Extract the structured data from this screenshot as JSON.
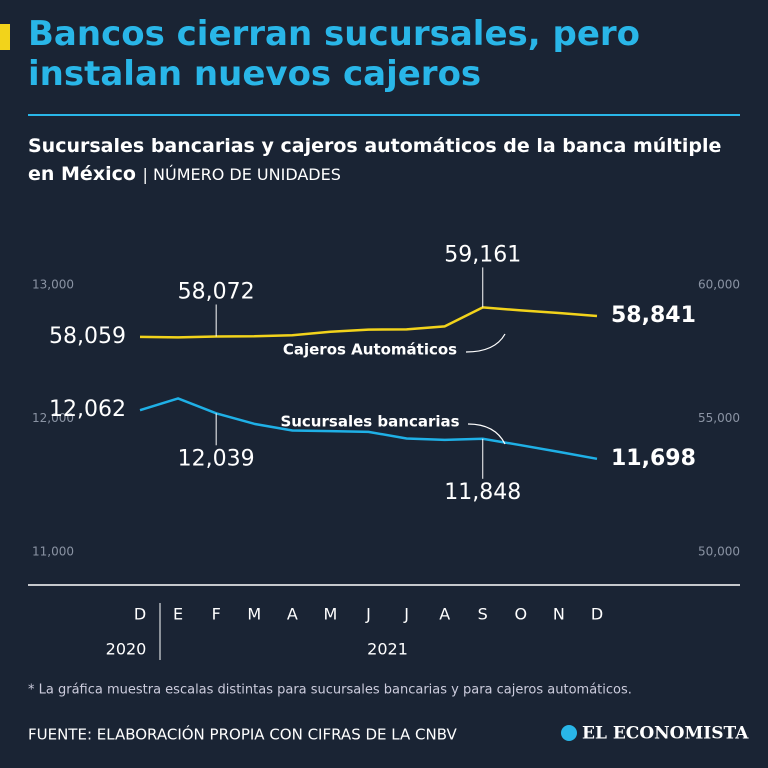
{
  "chart_data": {
    "type": "line",
    "title": "Bancos cierran sucursales, pero instalan nuevos cajeros",
    "subtitle": "Sucursales bancarias y cajeros automáticos de la banca múltiple en México",
    "units": "NÚMERO DE UNIDADES",
    "categories": [
      "D",
      "E",
      "F",
      "M",
      "A",
      "M",
      "J",
      "J",
      "A",
      "S",
      "O",
      "N",
      "D"
    ],
    "year_labels": [
      "2020",
      "2021"
    ],
    "ylim": [
      11000,
      13000
    ],
    "yticks": [
      {
        "value": 11000,
        "label": "11,000"
      },
      {
        "value": 12000,
        "label": "12,000"
      },
      {
        "value": 13000,
        "label": "13,000"
      }
    ],
    "y2lim": [
      50000,
      60000
    ],
    "y2ticks": [
      {
        "value": 50000,
        "label": "50,000"
      },
      {
        "value": 55000,
        "label": "55,000"
      },
      {
        "value": 60000,
        "label": "60,000"
      }
    ],
    "grid": false,
    "series": [
      {
        "name": "Cajeros Automáticos",
        "color": "#f2d31b",
        "axis": "y2",
        "values": [
          58059,
          58040,
          58072,
          58080,
          58120,
          58250,
          58330,
          58340,
          58450,
          59161,
          59050,
          58950,
          58841
        ],
        "value_labels": [
          "58,059",
          null,
          "58,072",
          null,
          null,
          null,
          null,
          null,
          null,
          "59,161",
          null,
          null,
          "58,841"
        ]
      },
      {
        "name": "Sucursales bancarias",
        "color": "#1fb0e6",
        "values": [
          12062,
          12150,
          12039,
          11960,
          11910,
          11905,
          11900,
          11850,
          11840,
          11848,
          11800,
          11750,
          11698
        ],
        "value_labels": [
          "12,062",
          null,
          "12,039",
          null,
          null,
          null,
          null,
          null,
          null,
          "11,848",
          null,
          null,
          "11,698"
        ]
      }
    ],
    "footnote": "* La gráfica muestra escalas distintas para sucursales bancarias y para cajeros automáticos.",
    "source": "FUENTE: ELABORACIÓN PROPIA CON CIFRAS DE LA CNBV",
    "brand": "EL ECONOMISTA"
  }
}
